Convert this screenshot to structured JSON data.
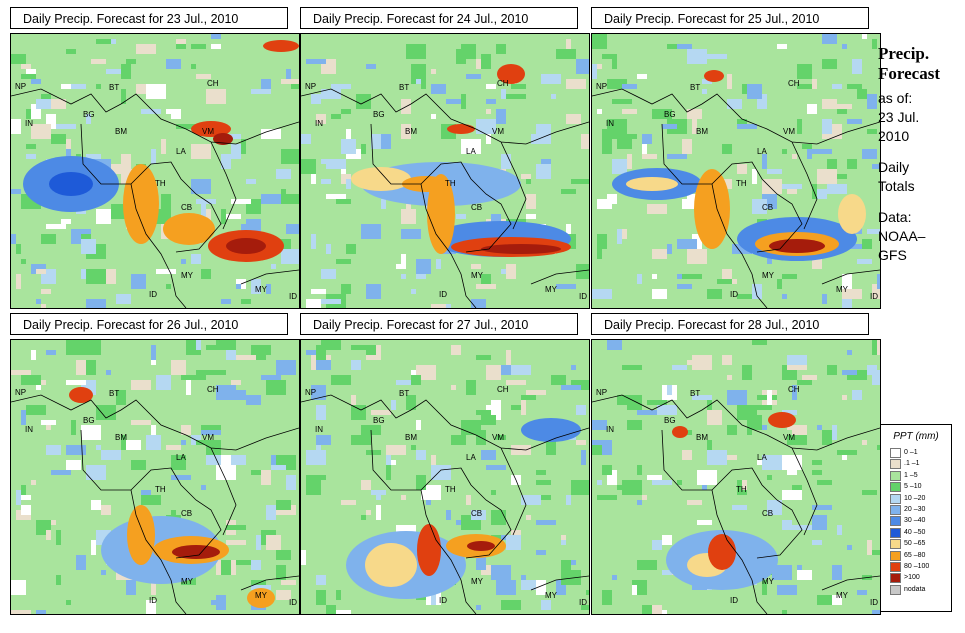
{
  "panels": [
    {
      "title": "Daily Precip. Forecast for  23 Jul., 2010"
    },
    {
      "title": "Daily Precip. Forecast for  24 Jul., 2010"
    },
    {
      "title": "Daily Precip. Forecast for  25 Jul., 2010"
    },
    {
      "title": "Daily Precip. Forecast for  26 Jul., 2010"
    },
    {
      "title": "Daily Precip. Forecast for  27 Jul., 2010"
    },
    {
      "title": "Daily Precip. Forecast for  28 Jul., 2010"
    }
  ],
  "country_labels": [
    "NP",
    "BT",
    "IN",
    "BG",
    "BM",
    "CH",
    "VM",
    "LA",
    "TH",
    "CB",
    "MY",
    "ID",
    "MY",
    "ID"
  ],
  "side": {
    "title_line1": "Precip.",
    "title_line2": "Forecast",
    "asof": "as of:",
    "date_line1": "23 Jul.",
    "date_line2": "2010",
    "totals_line1": "Daily",
    "totals_line2": "Totals",
    "data_line1": "Data:",
    "data_line2": "NOAA–",
    "data_line3": "GFS"
  },
  "legend": {
    "title": "PPT (mm)",
    "items": [
      {
        "label": "0 –1",
        "color": "#ffffff"
      },
      {
        "label": ".1 –1",
        "color": "#eadfcc"
      },
      {
        "label": "1 –5",
        "color": "#a9e49d"
      },
      {
        "label": "5 –10",
        "color": "#64d36a"
      },
      {
        "label": "10 –20",
        "color": "#b5d8f2"
      },
      {
        "label": "20 –30",
        "color": "#7fb2ec"
      },
      {
        "label": "30 –40",
        "color": "#4d8ae5"
      },
      {
        "label": "40 –50",
        "color": "#1e5ad8"
      },
      {
        "label": "50 –65",
        "color": "#f7d98a"
      },
      {
        "label": "65 –80",
        "color": "#f5a020"
      },
      {
        "label": "80 –100",
        "color": "#e04010"
      },
      {
        "label": ">100",
        "color": "#a51c0c"
      },
      {
        "label": "nodata",
        "color": "#c8c8c8"
      }
    ]
  }
}
